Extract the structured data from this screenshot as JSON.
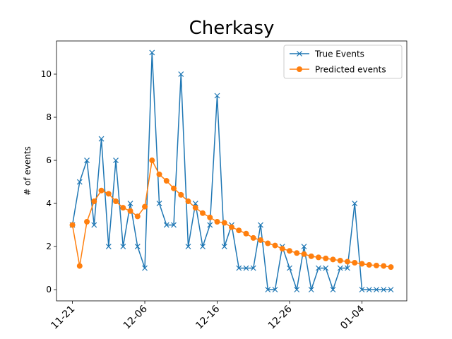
{
  "chart_data": {
    "type": "line",
    "title": "Cherkasy",
    "ylabel": "# of events",
    "categories": [
      "11-21",
      null,
      null,
      null,
      null,
      null,
      null,
      null,
      null,
      null,
      "12-06",
      null,
      null,
      null,
      null,
      null,
      null,
      null,
      null,
      null,
      "12-16",
      null,
      null,
      null,
      null,
      null,
      null,
      null,
      null,
      null,
      "12-26",
      null,
      null,
      null,
      null,
      null,
      null,
      null,
      null,
      null,
      "01-04",
      null,
      null,
      null,
      null
    ],
    "series": [
      {
        "name": "True Events",
        "color": "#1f77b4",
        "marker": "x",
        "values": [
          3,
          5,
          6,
          3,
          7,
          2,
          6,
          2,
          4,
          2,
          1,
          11,
          4,
          3,
          3,
          10,
          2,
          4,
          2,
          3,
          9,
          2,
          3,
          1,
          1,
          1,
          3,
          0,
          0,
          2,
          1,
          0,
          2,
          0,
          1,
          1,
          0,
          1,
          1,
          4,
          0,
          0,
          0,
          0,
          0
        ]
      },
      {
        "name": "Predicted events",
        "color": "#ff7f0e",
        "marker": "o",
        "values": [
          3,
          1.1,
          3.15,
          4.1,
          4.6,
          4.45,
          4.1,
          3.8,
          3.65,
          3.4,
          3.85,
          6.0,
          5.35,
          5.05,
          4.7,
          4.4,
          4.1,
          3.8,
          3.55,
          3.35,
          3.15,
          3.1,
          2.9,
          2.75,
          2.6,
          2.4,
          2.3,
          2.15,
          2.05,
          1.9,
          1.8,
          1.7,
          1.65,
          1.55,
          1.5,
          1.45,
          1.4,
          1.35,
          1.3,
          1.25,
          1.2,
          1.15,
          1.12,
          1.1,
          1.05
        ]
      }
    ],
    "xlim": [
      -2.2,
      46.2
    ],
    "ylim": [
      -0.52,
      11.54
    ],
    "yticks": [
      0,
      2,
      4,
      6,
      8,
      10
    ],
    "legend": "upper right",
    "grid": false
  }
}
